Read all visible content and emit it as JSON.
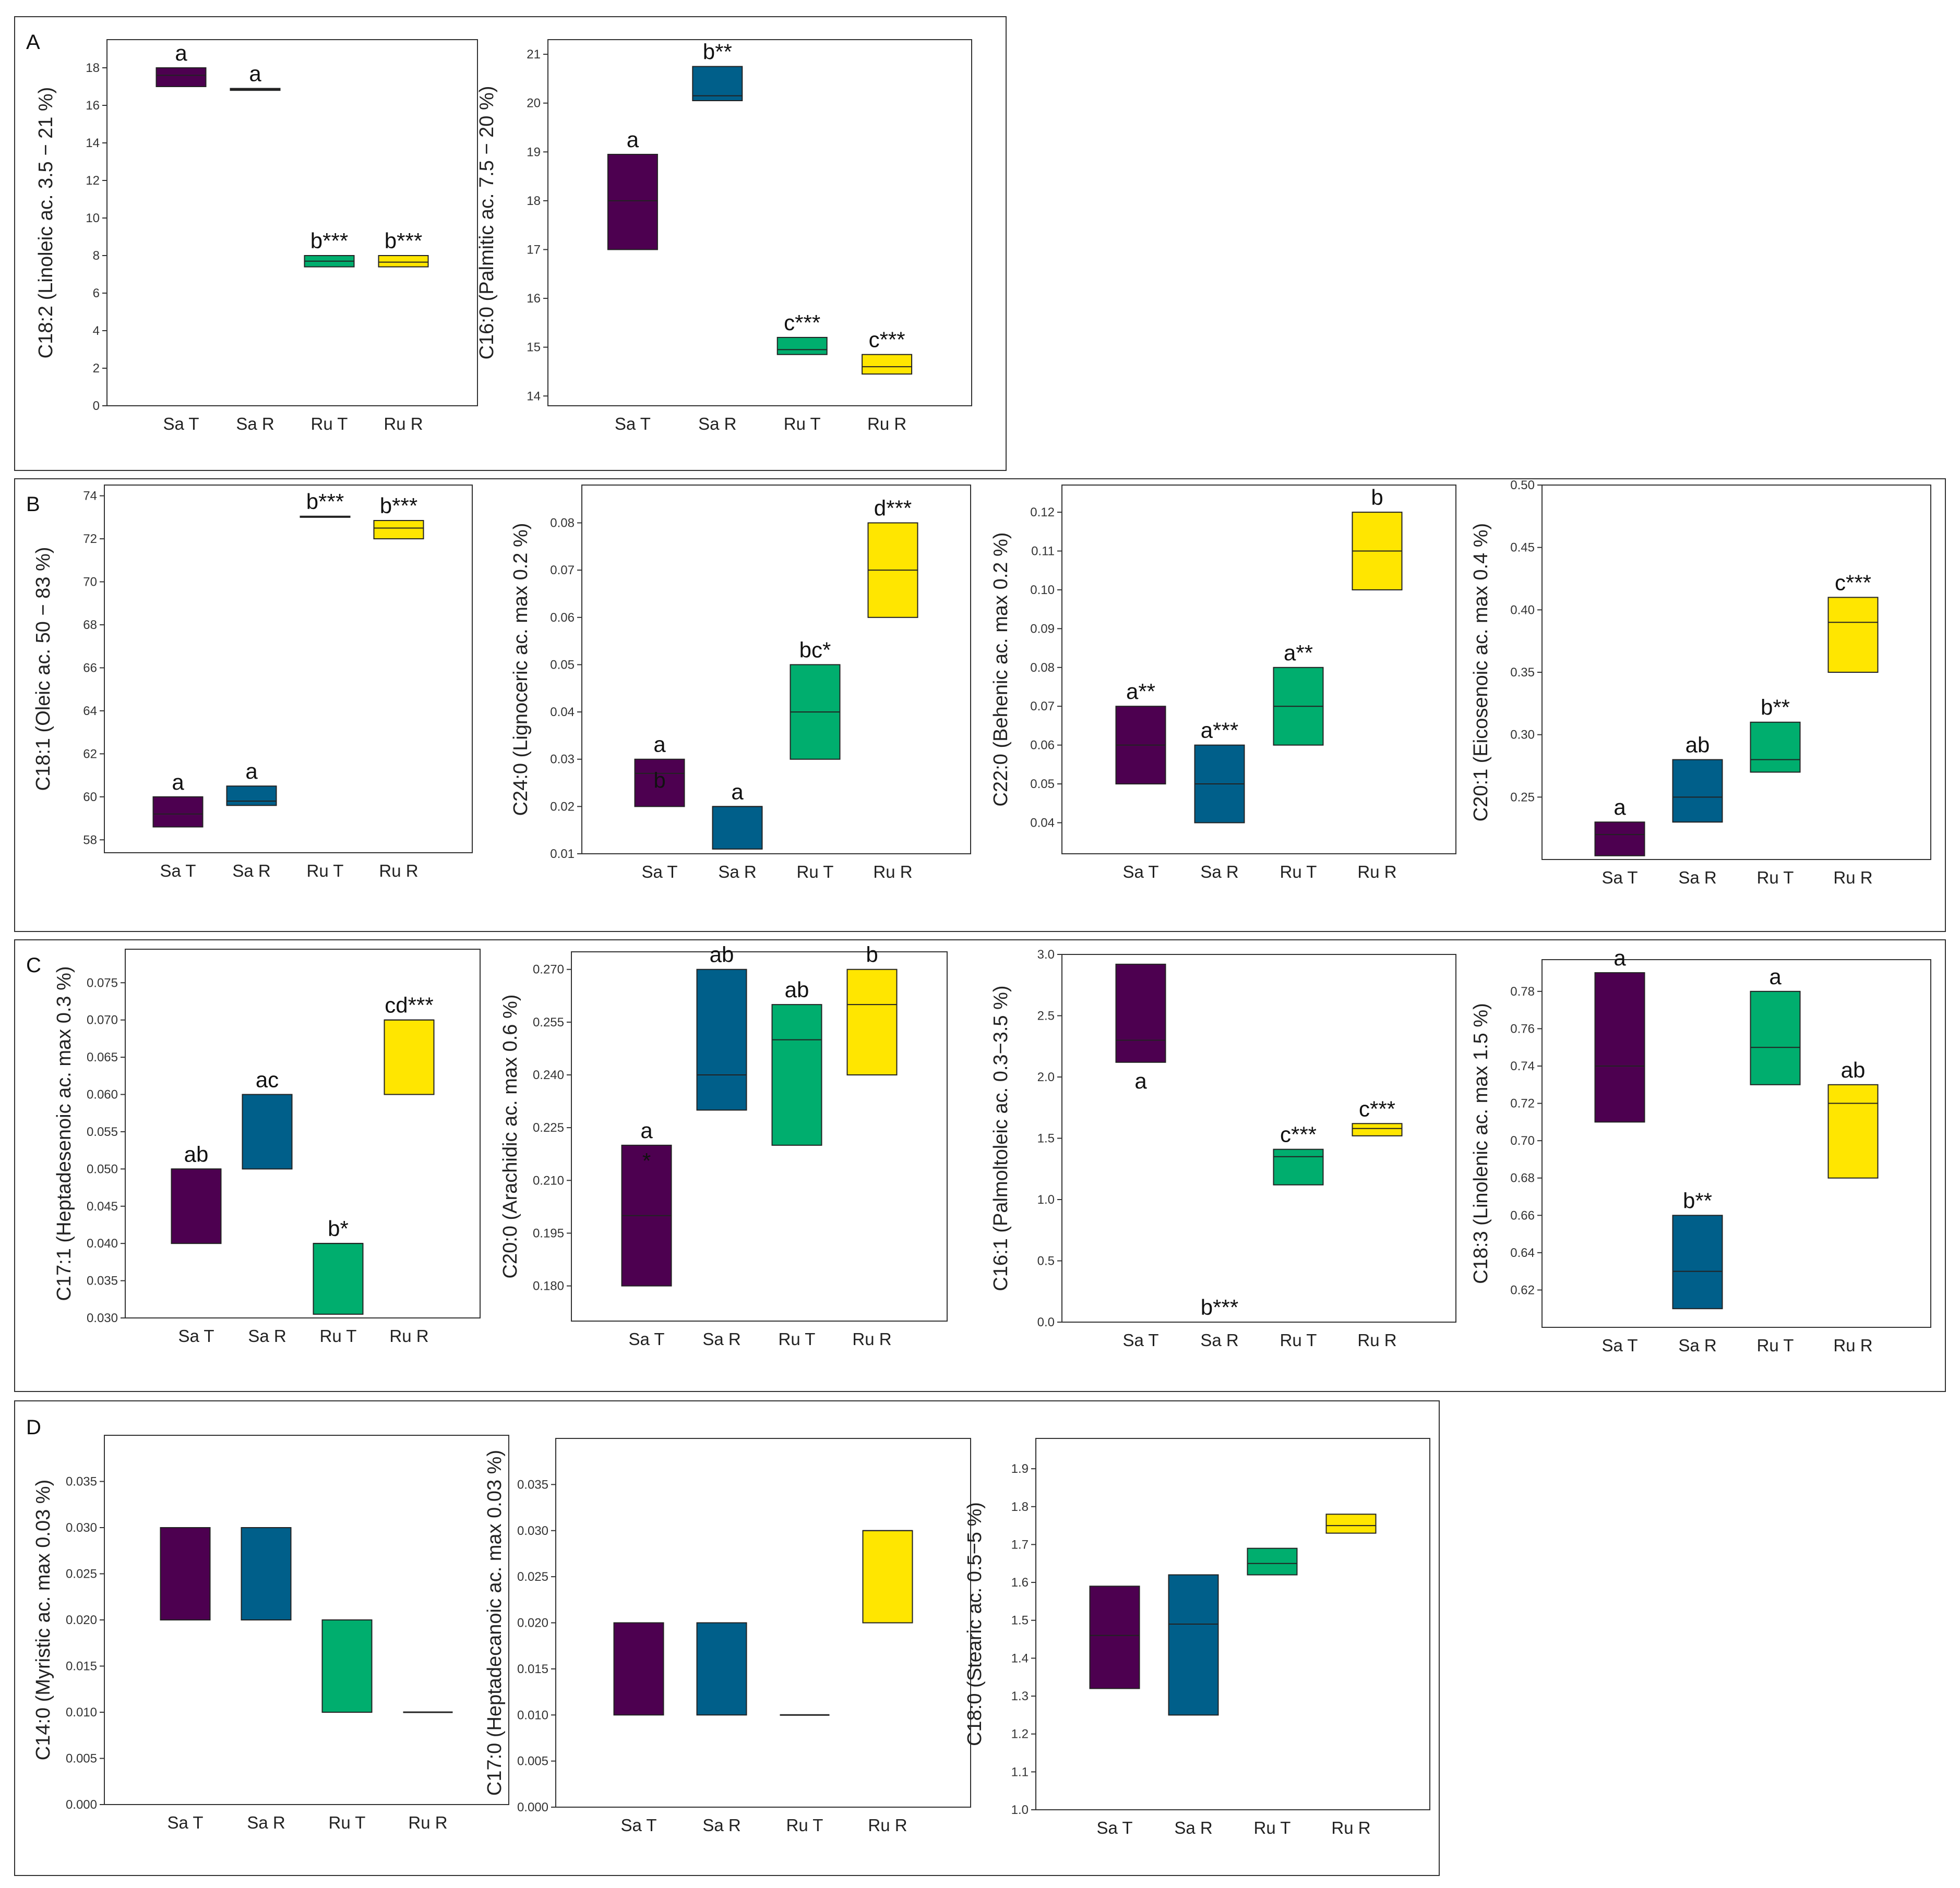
{
  "chart_data": {
    "type": "boxplot-figure",
    "categories": [
      "Sa T",
      "Sa R",
      "Ru T",
      "Ru R"
    ],
    "colors": {
      "Sa T": "#4d0050",
      "Sa R": "#005f8a",
      "Ru T": "#00ae6e",
      "Ru R": "#ffe600"
    },
    "panel_groups": [
      {
        "letter": "A",
        "charts": [
          {
            "title": "",
            "ylabel": "C18:2 (Linoleic ac. 3.5 − 21 %)",
            "ylim": [
              0,
              19.5
            ],
            "yticks": [
              0,
              2,
              4,
              6,
              8,
              10,
              12,
              14,
              16,
              18
            ],
            "tick_labels": [
              "0",
              "2",
              "4",
              "6",
              "8",
              "10",
              "12",
              "14",
              "16",
              "18"
            ],
            "boxes": [
              [
                17.0,
                17.6,
                18.0
              ],
              [
                16.8,
                16.85,
                16.9
              ],
              [
                7.4,
                7.7,
                8.0
              ],
              [
                7.4,
                7.65,
                8.0
              ]
            ],
            "labels": [
              "a",
              "a",
              "b***",
              "b***"
            ],
            "label_positions": [
              "above",
              "above",
              "above",
              "above"
            ]
          },
          {
            "title": "",
            "ylabel": "C16:0 (Palmitic ac. 7.5 − 20 %)",
            "ylim": [
              13.8,
              21.3
            ],
            "yticks": [
              14,
              15,
              16,
              17,
              18,
              19,
              20,
              21
            ],
            "tick_labels": [
              "14",
              "15",
              "16",
              "17",
              "18",
              "19",
              "20",
              "21"
            ],
            "boxes": [
              [
                17.0,
                18.0,
                18.95
              ],
              [
                20.05,
                20.15,
                20.75
              ],
              [
                14.85,
                14.95,
                15.2
              ],
              [
                14.45,
                14.6,
                14.85
              ]
            ],
            "labels": [
              "a",
              "b**",
              "c***",
              "c***"
            ],
            "label_positions": [
              "above",
              "above",
              "above",
              "above"
            ]
          }
        ]
      },
      {
        "letter": "B",
        "charts": [
          {
            "title": "",
            "ylabel": "C18:1 (Oleic ac. 50 − 83 %)",
            "ylim": [
              57.4,
              74.5
            ],
            "yticks": [
              58,
              60,
              62,
              64,
              66,
              68,
              70,
              72,
              74
            ],
            "tick_labels": [
              "58",
              "60",
              "62",
              "64",
              "66",
              "68",
              "70",
              "72",
              "74"
            ],
            "boxes": [
              [
                58.6,
                59.2,
                60.0
              ],
              [
                59.6,
                59.8,
                60.5
              ],
              [
                73.0,
                73.02,
                73.05
              ],
              [
                72.0,
                72.5,
                72.85
              ]
            ],
            "labels": [
              "a",
              "a",
              "b***",
              "b***"
            ],
            "label_positions": [
              "above",
              "above",
              "above",
              "above"
            ]
          },
          {
            "title": "",
            "ylabel": "C24:0 (Lignoceric ac. max 0.2 %)",
            "ylim": [
              0.01,
              0.088
            ],
            "yticks": [
              0.01,
              0.02,
              0.03,
              0.04,
              0.05,
              0.06,
              0.07,
              0.08
            ],
            "tick_labels": [
              "0.01",
              "0.02",
              "0.03",
              "0.04",
              "0.05",
              "0.06",
              "0.07",
              "0.08"
            ],
            "boxes": [
              [
                0.02,
                0.027,
                0.03
              ],
              [
                0.011,
                0.02,
                0.02
              ],
              [
                0.03,
                0.04,
                0.05
              ],
              [
                0.06,
                0.07,
                0.08
              ]
            ],
            "labels": [
              "a",
              "a",
              "bc*",
              "d***"
            ],
            "label_positions": [
              "above",
              "above",
              "above",
              "above"
            ],
            "extra_labels": [
              {
                "text": "b",
                "category": "Sa T",
                "value": 0.0255
              }
            ]
          },
          {
            "title": "",
            "ylabel": "C22:0 (Behenic ac. max 0.2 %)",
            "ylim": [
              0.032,
              0.127
            ],
            "yticks": [
              0.04,
              0.05,
              0.06,
              0.07,
              0.08,
              0.09,
              0.1,
              0.11,
              0.12
            ],
            "tick_labels": [
              "0.04",
              "0.05",
              "0.06",
              "0.07",
              "0.08",
              "0.09",
              "0.10",
              "0.11",
              "0.12"
            ],
            "boxes": [
              [
                0.05,
                0.06,
                0.07
              ],
              [
                0.04,
                0.05,
                0.06
              ],
              [
                0.06,
                0.07,
                0.08
              ],
              [
                0.1,
                0.11,
                0.12
              ]
            ],
            "labels": [
              "a**",
              "a***",
              "a**",
              "b"
            ],
            "label_positions": [
              "above",
              "above",
              "above",
              "above"
            ]
          },
          {
            "title": "",
            "ylabel": "C20:1 (Eicosenoic ac. max 0.4 %)",
            "ylim": [
              0.2,
              0.5
            ],
            "yticks": [
              0.25,
              0.3,
              0.35,
              0.4,
              0.45,
              0.5
            ],
            "tick_labels": [
              "0.25",
              "0.30",
              "0.35",
              "0.40",
              "0.45",
              "0.50"
            ],
            "boxes": [
              [
                0.203,
                0.22,
                0.23
              ],
              [
                0.23,
                0.25,
                0.28
              ],
              [
                0.27,
                0.28,
                0.31
              ],
              [
                0.35,
                0.39,
                0.41
              ]
            ],
            "labels": [
              "a",
              "ab",
              "b**",
              "c***"
            ],
            "label_positions": [
              "above",
              "above",
              "above",
              "above"
            ]
          }
        ]
      },
      {
        "letter": "C",
        "charts": [
          {
            "title": "",
            "ylabel": "C17:1 (Heptadesenoic ac. max 0.3 %)",
            "ylim": [
              0.03,
              0.0795
            ],
            "yticks": [
              0.03,
              0.035,
              0.04,
              0.045,
              0.05,
              0.055,
              0.06,
              0.065,
              0.07,
              0.075
            ],
            "tick_labels": [
              "0.030",
              "0.035",
              "0.040",
              "0.045",
              "0.050",
              "0.055",
              "0.060",
              "0.065",
              "0.070",
              "0.075"
            ],
            "boxes": [
              [
                0.04,
                0.05,
                0.05
              ],
              [
                0.05,
                0.06,
                0.06
              ],
              [
                0.0305,
                0.04,
                0.04
              ],
              [
                0.06,
                0.07,
                0.07
              ]
            ],
            "labels": [
              "ab",
              "ac",
              "b*",
              "cd***"
            ],
            "label_positions": [
              "above",
              "above",
              "above",
              "above"
            ]
          },
          {
            "title": "",
            "ylabel": "C20:0 (Arachidic ac. max 0.6 %)",
            "ylim": [
              0.17,
              0.275
            ],
            "yticks": [
              0.18,
              0.195,
              0.21,
              0.225,
              0.24,
              0.255,
              0.27
            ],
            "tick_labels": [
              "0.180",
              "0.195",
              "0.210",
              "0.225",
              "0.240",
              "0.255",
              "0.270"
            ],
            "boxes": [
              [
                0.18,
                0.2,
                0.22
              ],
              [
                0.23,
                0.24,
                0.27
              ],
              [
                0.22,
                0.25,
                0.26
              ],
              [
                0.24,
                0.26,
                0.27
              ]
            ],
            "labels": [
              "a",
              "ab",
              "ab",
              "b"
            ],
            "label_positions": [
              "above",
              "above",
              "above",
              "above"
            ],
            "extra_labels": [
              {
                "text": "*",
                "category": "Sa T",
                "value": 0.2155
              }
            ]
          },
          {
            "title": "",
            "ylabel": "C16:1 (Palmoltoleic ac. 0.3−3.5 %)",
            "ylim": [
              0,
              3.0
            ],
            "yticks": [
              0,
              0.5,
              1,
              1.5,
              2,
              2.5,
              3
            ],
            "tick_labels": [
              "0.0",
              "0.5",
              "1.0",
              "1.5",
              "2.0",
              "2.5",
              "3.0"
            ],
            "boxes": [
              [
                2.12,
                2.3,
                2.92
              ],
              [
                0,
                0,
                0
              ],
              [
                1.12,
                1.35,
                1.41
              ],
              [
                1.52,
                1.58,
                1.62
              ]
            ],
            "labels": [
              "a",
              "b***",
              "c***",
              "c***"
            ],
            "label_positions": [
              "below",
              "above",
              "above",
              "above"
            ]
          },
          {
            "title": "",
            "ylabel": "C18:3 (Linolenic ac. max 1.5 %)",
            "ylim": [
              0.6,
              0.797
            ],
            "yticks": [
              0.62,
              0.64,
              0.66,
              0.68,
              0.7,
              0.72,
              0.74,
              0.76,
              0.78
            ],
            "tick_labels": [
              "0.62",
              "0.64",
              "0.66",
              "0.68",
              "0.70",
              "0.72",
              "0.74",
              "0.76",
              "0.78"
            ],
            "boxes": [
              [
                0.71,
                0.74,
                0.79
              ],
              [
                0.61,
                0.63,
                0.66
              ],
              [
                0.73,
                0.75,
                0.78
              ],
              [
                0.68,
                0.72,
                0.73
              ]
            ],
            "labels": [
              "a",
              "b**",
              "a",
              "ab"
            ],
            "label_positions": [
              "above",
              "above",
              "above",
              "above"
            ]
          }
        ]
      },
      {
        "letter": "D",
        "charts": [
          {
            "title": "",
            "ylabel": "C14:0 (Myristic ac. max 0.03 %)",
            "ylim": [
              0,
              0.04
            ],
            "yticks": [
              0,
              0.005,
              0.01,
              0.015,
              0.02,
              0.025,
              0.03,
              0.035
            ],
            "tick_labels": [
              "0.000",
              "0.005",
              "0.010",
              "0.015",
              "0.020",
              "0.025",
              "0.030",
              "0.035"
            ],
            "boxes": [
              [
                0.02,
                0.03,
                0.03
              ],
              [
                0.02,
                0.03,
                0.03
              ],
              [
                0.01,
                0.02,
                0.02
              ],
              [
                0.01,
                0.01,
                0.01
              ]
            ],
            "labels": [
              "",
              "",
              "",
              ""
            ],
            "label_positions": [
              "above",
              "above",
              "above",
              "above"
            ]
          },
          {
            "title": "",
            "ylabel": "C17:0 (Heptadecanoic ac. max 0.03 %)",
            "ylim": [
              0,
              0.04
            ],
            "yticks": [
              0,
              0.005,
              0.01,
              0.015,
              0.02,
              0.025,
              0.03,
              0.035
            ],
            "tick_labels": [
              "0.000",
              "0.005",
              "0.010",
              "0.015",
              "0.020",
              "0.025",
              "0.030",
              "0.035"
            ],
            "boxes": [
              [
                0.01,
                0.02,
                0.02
              ],
              [
                0.01,
                0.02,
                0.02
              ],
              [
                0.01,
                0.01,
                0.01
              ],
              [
                0.02,
                0.03,
                0.03
              ]
            ],
            "labels": [
              "",
              "",
              "",
              ""
            ],
            "label_positions": [
              "above",
              "above",
              "above",
              "above"
            ]
          },
          {
            "title": "",
            "ylabel": "C18:0 (Stearic ac. 0.5−5 %)",
            "ylim": [
              1.0,
              1.98
            ],
            "yticks": [
              1.0,
              1.1,
              1.2,
              1.3,
              1.4,
              1.5,
              1.6,
              1.7,
              1.8,
              1.9
            ],
            "tick_labels": [
              "1.0",
              "1.1",
              "1.2",
              "1.3",
              "1.4",
              "1.5",
              "1.6",
              "1.7",
              "1.8",
              "1.9"
            ],
            "boxes": [
              [
                1.32,
                1.46,
                1.59
              ],
              [
                1.25,
                1.49,
                1.62
              ],
              [
                1.62,
                1.65,
                1.69
              ],
              [
                1.73,
                1.75,
                1.78
              ]
            ],
            "labels": [
              "",
              "",
              "",
              ""
            ],
            "label_positions": [
              "above",
              "above",
              "above",
              "above"
            ]
          }
        ]
      }
    ]
  }
}
